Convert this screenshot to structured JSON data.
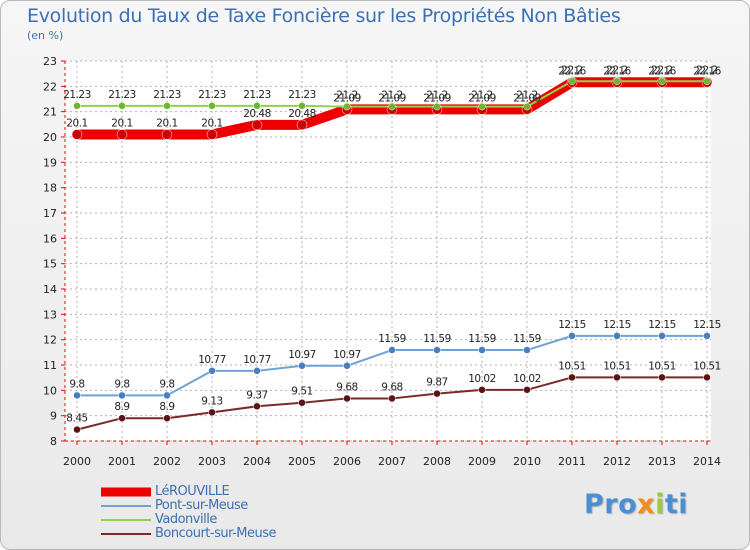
{
  "title": "Evolution du Taux de Taxe Foncière sur les Propriétés Non Bâties",
  "subtitle": "(en %)",
  "logo": {
    "p1": "Pro",
    "p2": "x",
    "p3": "i",
    "p4": "ti"
  },
  "colors": {
    "axis": "#ff0000",
    "grid": "#b3b3b3",
    "text": "#222222",
    "accent": "#3d6fb3"
  },
  "chart_data": {
    "type": "line",
    "title": "Evolution du Taux de Taxe Foncière sur les Propriétés Non Bâties",
    "ylabel": "(en %)",
    "xlabel": "",
    "ylim": [
      8,
      23
    ],
    "yticks": [
      "8",
      "9",
      "10",
      "11",
      "12",
      "13",
      "14",
      "15",
      "16",
      "17",
      "18",
      "19",
      "20",
      "21",
      "22",
      "23"
    ],
    "categories": [
      "2000",
      "2001",
      "2002",
      "2003",
      "2004",
      "2005",
      "2006",
      "2007",
      "2008",
      "2009",
      "2010",
      "2011",
      "2012",
      "2013",
      "2014"
    ],
    "grid": true,
    "legend": "bottom-left",
    "series": [
      {
        "name": "LéROUVILLE",
        "color": "#ee0000",
        "marker": "#cc0000",
        "width": 10,
        "values": [
          20.1,
          20.1,
          20.1,
          20.1,
          20.48,
          20.48,
          21.09,
          21.09,
          21.09,
          21.09,
          21.09,
          22.16,
          22.16,
          22.16,
          22.16
        ],
        "labels": [
          "20.1",
          "20.1",
          "20.1",
          "20.1",
          "20.48",
          "20.48",
          "21.09",
          "21.09",
          "21.09",
          "21.09",
          "21.09",
          "22.16",
          "22.16",
          "22.16",
          "22.16"
        ],
        "label_offset": [
          -1,
          -1,
          -1,
          -1,
          -1,
          -1,
          -1,
          -1,
          -1,
          -1,
          -1,
          -1,
          -1,
          -1,
          -1
        ]
      },
      {
        "name": "Pont-sur-Meuse",
        "color": "#6fa2d6",
        "marker": "#4a7fbf",
        "width": 2,
        "values": [
          9.8,
          9.8,
          9.8,
          10.77,
          10.77,
          10.97,
          10.97,
          11.59,
          11.59,
          11.59,
          11.59,
          12.15,
          12.15,
          12.15,
          12.15
        ],
        "labels": [
          "9.8",
          "9.8",
          "9.8",
          "10.77",
          "10.77",
          "10.97",
          "10.97",
          "11.59",
          "11.59",
          "11.59",
          "11.59",
          "12.15",
          "12.15",
          "12.15",
          "12.15"
        ],
        "label_offset": [
          -1,
          -1,
          -1,
          -1,
          -1,
          -1,
          -1,
          -1,
          -1,
          -1,
          -1,
          -1,
          -1,
          -1,
          -1
        ]
      },
      {
        "name": "Vadonville",
        "color": "#8fd24a",
        "marker": "#6bb82c",
        "width": 2,
        "values": [
          21.23,
          21.23,
          21.23,
          21.23,
          21.23,
          21.23,
          21.2,
          21.2,
          21.2,
          21.2,
          21.2,
          22.2,
          22.2,
          22.2,
          22.2
        ],
        "labels": [
          "21.23",
          "21.23",
          "21.23",
          "21.23",
          "21.23",
          "21.23",
          "21.2",
          "21.2",
          "21.2",
          "21.2",
          "21.2",
          "22.2",
          "22.2",
          "22.2",
          "22.2"
        ],
        "label_offset": [
          -1,
          -1,
          -1,
          -1,
          -1,
          -1,
          -1,
          -1,
          -1,
          -1,
          -1,
          -1,
          -1,
          -1,
          -1
        ]
      },
      {
        "name": "Boncourt-sur-Meuse",
        "color": "#7a2a2a",
        "marker": "#5a1414",
        "width": 2,
        "values": [
          8.45,
          8.9,
          8.9,
          9.13,
          9.37,
          9.51,
          9.68,
          9.68,
          9.87,
          10.02,
          10.02,
          10.51,
          10.51,
          10.51,
          10.51
        ],
        "labels": [
          "8.45",
          "8.9",
          "8.9",
          "9.13",
          "9.37",
          "9.51",
          "9.68",
          "9.68",
          "9.87",
          "10.02",
          "10.02",
          "10.51",
          "10.51",
          "10.51",
          "10.51"
        ],
        "label_offset": [
          -1,
          -1,
          -1,
          -1,
          -1,
          -1,
          -1,
          -1,
          -1,
          -1,
          -1,
          -1,
          -1,
          -1,
          -1
        ]
      }
    ]
  }
}
